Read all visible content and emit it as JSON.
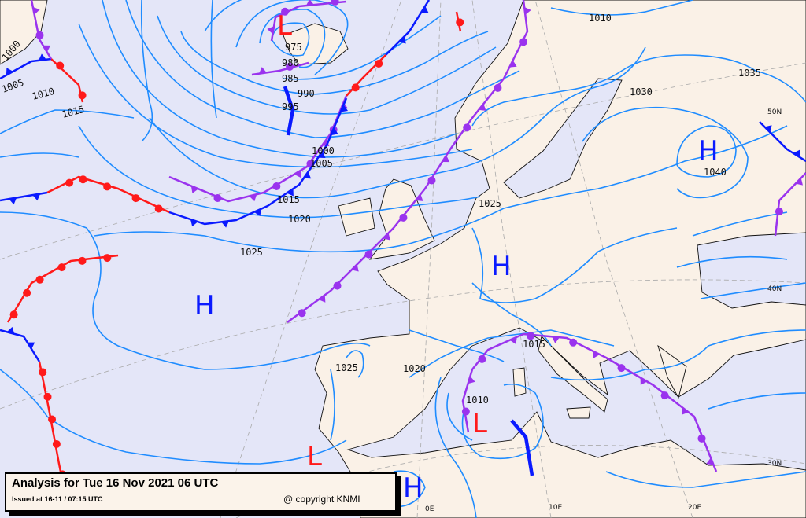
{
  "caption": {
    "title": "Analysis for Tue 16 Nov 2021 06 UTC",
    "issued": "Issued at 16-11 / 07:15 UTC",
    "copyright": "@ copyright KNMI"
  },
  "colors": {
    "sea": "#e4e6f8",
    "land": "#faf1e7",
    "isobar": "#1f8cff",
    "high": "#0a1aff",
    "low": "#ff1a1a",
    "cold_front": "#0a1aff",
    "warm_front": "#ff1a1a",
    "occluded_front": "#9a33ee"
  },
  "pressure_centers": [
    {
      "type": "L"
    },
    {
      "type": "H"
    },
    {
      "type": "H"
    },
    {
      "type": "H"
    },
    {
      "type": "L"
    },
    {
      "type": "L"
    },
    {
      "type": "H"
    }
  ],
  "isobar_labels": [
    "975",
    "980",
    "985",
    "990",
    "995",
    "1000",
    "1005",
    "1015",
    "1020",
    "1025",
    "1025",
    "1030",
    "1035",
    "1040",
    "1010",
    "1025",
    "1020",
    "1010",
    "1015",
    "1000",
    "1005",
    "1010",
    "1015"
  ],
  "graticule_labels": [
    "50N",
    "40N",
    "30N",
    "0E",
    "10E",
    "20E"
  ],
  "fronts": [
    "occluded",
    "occluded",
    "occluded",
    "cold",
    "warm",
    "warm",
    "occluded",
    "cold",
    "warm",
    "cold",
    "cold",
    "warm",
    "warm",
    "cold",
    "warm",
    "blue-top-left",
    "occluded",
    "cold",
    "cold",
    "occluded",
    "occluded"
  ]
}
